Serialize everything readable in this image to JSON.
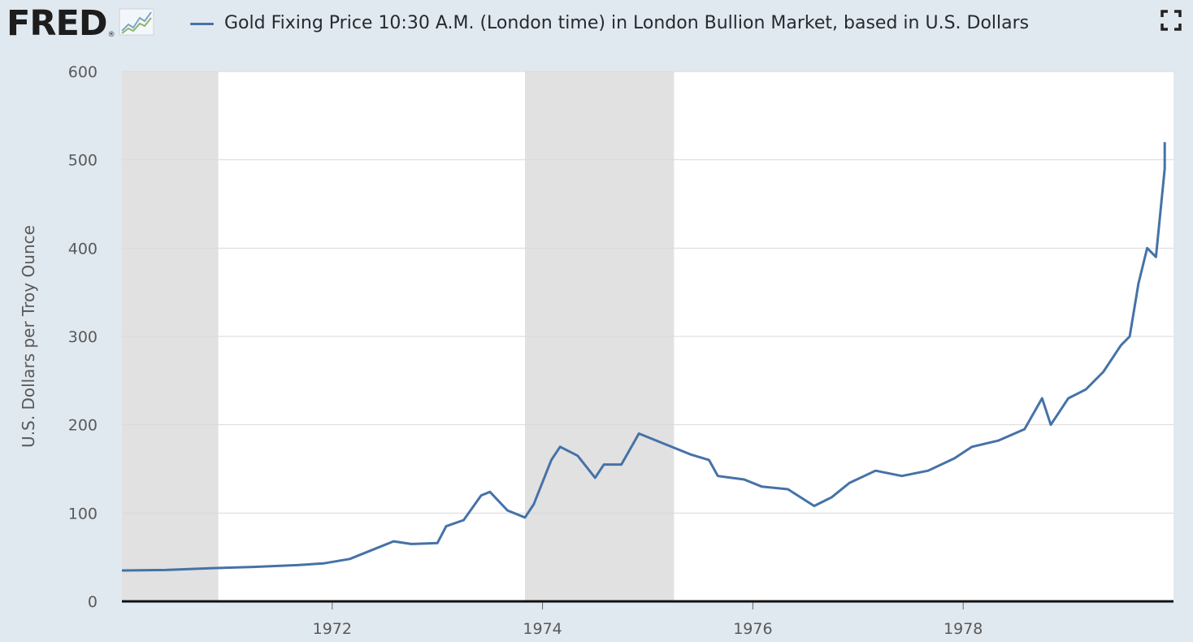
{
  "header": {
    "logo_text": "FRED",
    "logo_mark": "®",
    "logo_icon": "line-chart-icon",
    "fullscreen_icon": "fullscreen-icon"
  },
  "chart_data": {
    "type": "line",
    "title": "Gold Fixing Price 10:30 A.M. (London time) in London Bullion Market, based in U.S. Dollars",
    "xlabel": "",
    "ylabel": "U.S. Dollars per Troy Ounce",
    "ylim": [
      0,
      600
    ],
    "xlim": [
      "1970-01",
      "1979-12"
    ],
    "yticks": [
      0,
      100,
      200,
      300,
      400,
      500,
      600
    ],
    "xticks": [
      "1972",
      "1974",
      "1976",
      "1978"
    ],
    "grid": true,
    "legend": "top-left",
    "line_color": "#4572a7",
    "recession_color": "#e1e1e1",
    "recessions": [
      {
        "start": "1970-01",
        "end": "1970-11"
      },
      {
        "start": "1973-11",
        "end": "1975-03"
      }
    ],
    "series": [
      {
        "name": "Gold Fixing Price 10:30 A.M. (London time) in London Bullion Market, based in U.S. Dollars",
        "points": [
          [
            "1970-01",
            35
          ],
          [
            "1970-06",
            35.5
          ],
          [
            "1970-11",
            37.5
          ],
          [
            "1971-04",
            39
          ],
          [
            "1971-09",
            41
          ],
          [
            "1971-12",
            43
          ],
          [
            "1972-03",
            48
          ],
          [
            "1972-06",
            60
          ],
          [
            "1972-08",
            68
          ],
          [
            "1972-10",
            65
          ],
          [
            "1973-01",
            66
          ],
          [
            "1973-02",
            85
          ],
          [
            "1973-04",
            92
          ],
          [
            "1973-06",
            120
          ],
          [
            "1973-07",
            124
          ],
          [
            "1973-09",
            103
          ],
          [
            "1973-11",
            95
          ],
          [
            "1973-12",
            110
          ],
          [
            "1974-02",
            160
          ],
          [
            "1974-03",
            175
          ],
          [
            "1974-05",
            165
          ],
          [
            "1974-07",
            140
          ],
          [
            "1974-08",
            155
          ],
          [
            "1974-10",
            155
          ],
          [
            "1974-12",
            190
          ],
          [
            "1975-03",
            178
          ],
          [
            "1975-06",
            166
          ],
          [
            "1975-08",
            160
          ],
          [
            "1975-09",
            142
          ],
          [
            "1975-12",
            138
          ],
          [
            "1976-02",
            130
          ],
          [
            "1976-05",
            127
          ],
          [
            "1976-08",
            108
          ],
          [
            "1976-10",
            118
          ],
          [
            "1976-12",
            134
          ],
          [
            "1977-03",
            148
          ],
          [
            "1977-06",
            142
          ],
          [
            "1977-09",
            148
          ],
          [
            "1977-12",
            162
          ],
          [
            "1978-02",
            175
          ],
          [
            "1978-05",
            182
          ],
          [
            "1978-08",
            195
          ],
          [
            "1978-10",
            230
          ],
          [
            "1978-11",
            200
          ],
          [
            "1979-01",
            230
          ],
          [
            "1979-03",
            240
          ],
          [
            "1979-05",
            260
          ],
          [
            "1979-07",
            290
          ],
          [
            "1979-08",
            300
          ],
          [
            "1979-09",
            360
          ],
          [
            "1979-10",
            400
          ],
          [
            "1979-11",
            390
          ],
          [
            "1979-12",
            490
          ],
          [
            "1979-12",
            520
          ]
        ]
      }
    ]
  }
}
